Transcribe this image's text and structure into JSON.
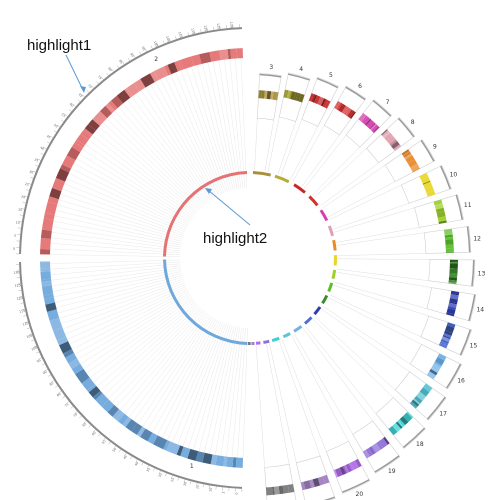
{
  "annotations": [
    {
      "text": "highlight1",
      "color": "#5b9bd5"
    },
    {
      "text": "highlight2",
      "color": "#5b9bd5"
    }
  ],
  "chromosomes": [
    {
      "label": "2",
      "color": "#e57373"
    },
    {
      "label": "1",
      "color": "#6fa8dc"
    },
    {
      "label": "3",
      "color": "#a88f3a"
    },
    {
      "label": "4",
      "color": "#b5ad3a"
    },
    {
      "label": "5",
      "color": "#c62828"
    },
    {
      "label": "6",
      "color": "#d32f2f"
    },
    {
      "label": "7",
      "color": "#d63fb0"
    },
    {
      "label": "8",
      "color": "#e0a0b0"
    },
    {
      "label": "9",
      "color": "#e88a2a"
    },
    {
      "label": "10",
      "color": "#e8d72a"
    },
    {
      "label": "11",
      "color": "#9bd12a"
    },
    {
      "label": "12",
      "color": "#5cbf2a"
    },
    {
      "label": "13",
      "color": "#3d8a2f"
    },
    {
      "label": "14",
      "color": "#2f3fb3"
    },
    {
      "label": "15",
      "color": "#4f6fd8"
    },
    {
      "label": "16",
      "color": "#6fb1e8"
    },
    {
      "label": "17",
      "color": "#59c6d6"
    },
    {
      "label": "18",
      "color": "#3bd1d1"
    },
    {
      "label": "19",
      "color": "#8f6fd8"
    },
    {
      "label": "20",
      "color": "#b06fe8"
    },
    {
      "label": "21",
      "color": "#a080c0"
    },
    {
      "label": "22",
      "color": "#7a7a7a"
    }
  ]
}
